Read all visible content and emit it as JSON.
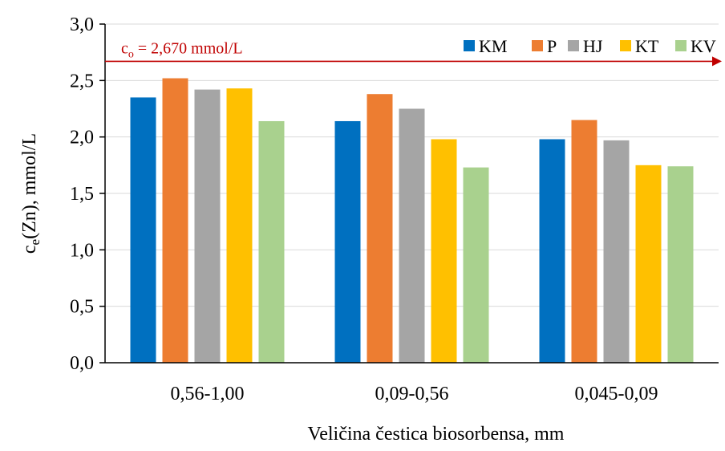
{
  "chart_data": {
    "type": "bar",
    "categories": [
      "0,56-1,00",
      "0,09-0,56",
      "0,045-0,09"
    ],
    "series": [
      {
        "name": "KM",
        "color": "#0070C0",
        "values": [
          2.35,
          2.14,
          1.98
        ]
      },
      {
        "name": "P",
        "color": "#ED7D31",
        "values": [
          2.52,
          2.38,
          2.15
        ]
      },
      {
        "name": "HJ",
        "color": "#A5A5A5",
        "values": [
          2.42,
          2.25,
          1.97
        ]
      },
      {
        "name": "KT",
        "color": "#FFC000",
        "values": [
          2.43,
          1.98,
          1.75
        ]
      },
      {
        "name": "KV",
        "color": "#A9D18E",
        "values": [
          2.14,
          1.73,
          1.74
        ]
      }
    ],
    "ylim": [
      0,
      3.0
    ],
    "yticks": [
      "0,0",
      "0,5",
      "1,0",
      "1,5",
      "2,0",
      "2,5",
      "3,0"
    ],
    "ytick_values": [
      0,
      0.5,
      1.0,
      1.5,
      2.0,
      2.5,
      3.0
    ],
    "ylabel": {
      "base": "c",
      "sub": "e",
      "rest": "(Zn),  mmol/L"
    },
    "xlabel": "Veličina  čestica  biosorbensa,  mm",
    "grid": true,
    "legend_position": "top-right",
    "reference_line": {
      "value": 2.67,
      "label_base": "c",
      "label_sub": "o",
      "label_rest": " = 2,670  mmol/L",
      "color": "#C00000"
    }
  }
}
